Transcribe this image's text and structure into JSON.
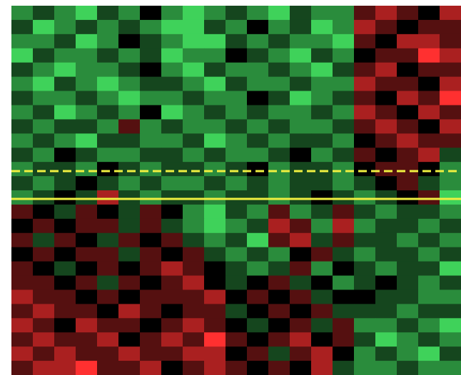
{
  "chart_data": {
    "type": "heatmap",
    "colorscale": [
      "#3fd25a",
      "#000000",
      "#ff3030"
    ],
    "vlim": [
      -3,
      3
    ],
    "values": [
      [
        -2,
        -1,
        -2,
        -3,
        -1,
        -2,
        0,
        -2,
        -3,
        -2,
        -1,
        -2,
        -3,
        -1,
        -2,
        -2,
        1,
        2,
        1,
        0,
        2
      ],
      [
        -1,
        -3,
        -2,
        -1,
        -2,
        -1,
        -2,
        -3,
        -3,
        -1,
        -2,
        0,
        -2,
        -1,
        -3,
        -2,
        2,
        1,
        0,
        1,
        1
      ],
      [
        -2,
        -2,
        -1,
        -3,
        -2,
        0,
        -1,
        -2,
        -3,
        -3,
        -1,
        -2,
        -1,
        -2,
        -2,
        -3,
        1,
        0,
        2,
        2,
        1
      ],
      [
        -3,
        -1,
        -2,
        -2,
        -1,
        -2,
        -1,
        -3,
        -2,
        -2,
        0,
        -1,
        -2,
        -3,
        -1,
        -2,
        0,
        1,
        1,
        3,
        2
      ],
      [
        -1,
        -2,
        -3,
        -2,
        -2,
        -1,
        0,
        -2,
        -3,
        -1,
        -2,
        -2,
        -1,
        -2,
        -3,
        -1,
        1,
        2,
        0,
        1,
        1
      ],
      [
        -2,
        -3,
        -1,
        -2,
        -3,
        -2,
        -1,
        -1,
        -2,
        -3,
        -1,
        -2,
        -2,
        -1,
        -2,
        -2,
        2,
        1,
        1,
        0,
        2
      ],
      [
        -1,
        -2,
        -2,
        -1,
        -2,
        -3,
        -2,
        -2,
        -1,
        -2,
        -2,
        0,
        -1,
        -3,
        -2,
        -1,
        1,
        0,
        2,
        1,
        3
      ],
      [
        -2,
        -1,
        -3,
        -2,
        -1,
        -2,
        0,
        -3,
        -2,
        -1,
        -2,
        -1,
        -2,
        -2,
        -1,
        -2,
        2,
        1,
        0,
        2,
        1
      ],
      [
        -1,
        -2,
        -1,
        -1,
        -2,
        1,
        -2,
        -1,
        -2,
        -2,
        -1,
        -2,
        -1,
        -2,
        -2,
        -1,
        1,
        2,
        1,
        0,
        2
      ],
      [
        -2,
        -1,
        -2,
        -3,
        -1,
        -1,
        -2,
        -2,
        -1,
        -3,
        -2,
        -1,
        -2,
        -1,
        -1,
        -2,
        0,
        1,
        2,
        1,
        1
      ],
      [
        -1,
        -2,
        0,
        -1,
        -2,
        -2,
        -1,
        -1,
        -2,
        -1,
        -2,
        -2,
        -1,
        0,
        -2,
        -1,
        1,
        0,
        1,
        2,
        -1
      ],
      [
        -2,
        -1,
        -1,
        -2,
        0,
        -1,
        -2,
        -1,
        -1,
        -2,
        -1,
        0,
        -2,
        -1,
        -1,
        -2,
        0,
        1,
        1,
        0,
        -2
      ],
      [
        -1,
        -2,
        -1,
        0,
        -1,
        -2,
        -1,
        -2,
        -2,
        -1,
        -2,
        -1,
        -2,
        -1,
        -1,
        -2,
        -1,
        0,
        1,
        -1,
        -2
      ],
      [
        -2,
        -1,
        0,
        -1,
        2,
        -1,
        -2,
        -1,
        -1,
        -2,
        -1,
        -1,
        -2,
        -1,
        0,
        -1,
        -2,
        -1,
        0,
        1,
        -3
      ],
      [
        1,
        0,
        -1,
        1,
        0,
        -1,
        1,
        0,
        -2,
        -3,
        -1,
        -2,
        1,
        -2,
        -1,
        1,
        -1,
        -2,
        -1,
        -1,
        -2
      ],
      [
        0,
        1,
        0,
        1,
        1,
        -1,
        1,
        -1,
        -2,
        -3,
        -2,
        -1,
        2,
        1,
        -2,
        2,
        -2,
        -1,
        -1,
        -2,
        -1
      ],
      [
        1,
        -1,
        1,
        0,
        -1,
        1,
        0,
        1,
        -1,
        -2,
        -1,
        -3,
        1,
        2,
        -1,
        1,
        -1,
        -1,
        -2,
        -1,
        -2
      ],
      [
        0,
        1,
        0,
        1,
        1,
        -1,
        1,
        0,
        1,
        -1,
        -2,
        -1,
        -2,
        0,
        1,
        -1,
        -2,
        -1,
        -1,
        -2,
        -1
      ],
      [
        1,
        0,
        -1,
        0,
        1,
        0,
        1,
        2,
        1,
        0,
        -1,
        -2,
        -1,
        1,
        -2,
        0,
        -1,
        -2,
        -1,
        -1,
        -3
      ],
      [
        1,
        1,
        0,
        1,
        -1,
        1,
        0,
        1,
        2,
        0,
        -1,
        0,
        1,
        -1,
        0,
        -2,
        -1,
        0,
        -1,
        -2,
        -1
      ],
      [
        2,
        1,
        1,
        0,
        1,
        0,
        1,
        1,
        1,
        2,
        0,
        1,
        0,
        1,
        -1,
        0,
        0,
        -1,
        -1,
        -2,
        -2
      ],
      [
        1,
        2,
        1,
        1,
        0,
        2,
        1,
        0,
        1,
        1,
        -1,
        0,
        1,
        0,
        1,
        -1,
        -1,
        -1,
        -2,
        -1,
        -1
      ],
      [
        2,
        1,
        0,
        2,
        1,
        1,
        0,
        1,
        2,
        1,
        0,
        -1,
        0,
        1,
        -1,
        1,
        -2,
        -2,
        -1,
        -2,
        -3
      ],
      [
        1,
        2,
        1,
        1,
        2,
        0,
        1,
        2,
        1,
        3,
        1,
        0,
        1,
        2,
        0,
        1,
        -1,
        -3,
        -2,
        -1,
        -2
      ],
      [
        2,
        1,
        2,
        1,
        1,
        2,
        1,
        1,
        2,
        2,
        0,
        1,
        -1,
        1,
        2,
        0,
        -2,
        -1,
        -2,
        -3,
        -1
      ],
      [
        1,
        2,
        2,
        3,
        1,
        1,
        2,
        0,
        1,
        2,
        1,
        0,
        1,
        0,
        2,
        -1,
        -2,
        -2,
        -1,
        -2,
        -2
      ]
    ]
  }
}
